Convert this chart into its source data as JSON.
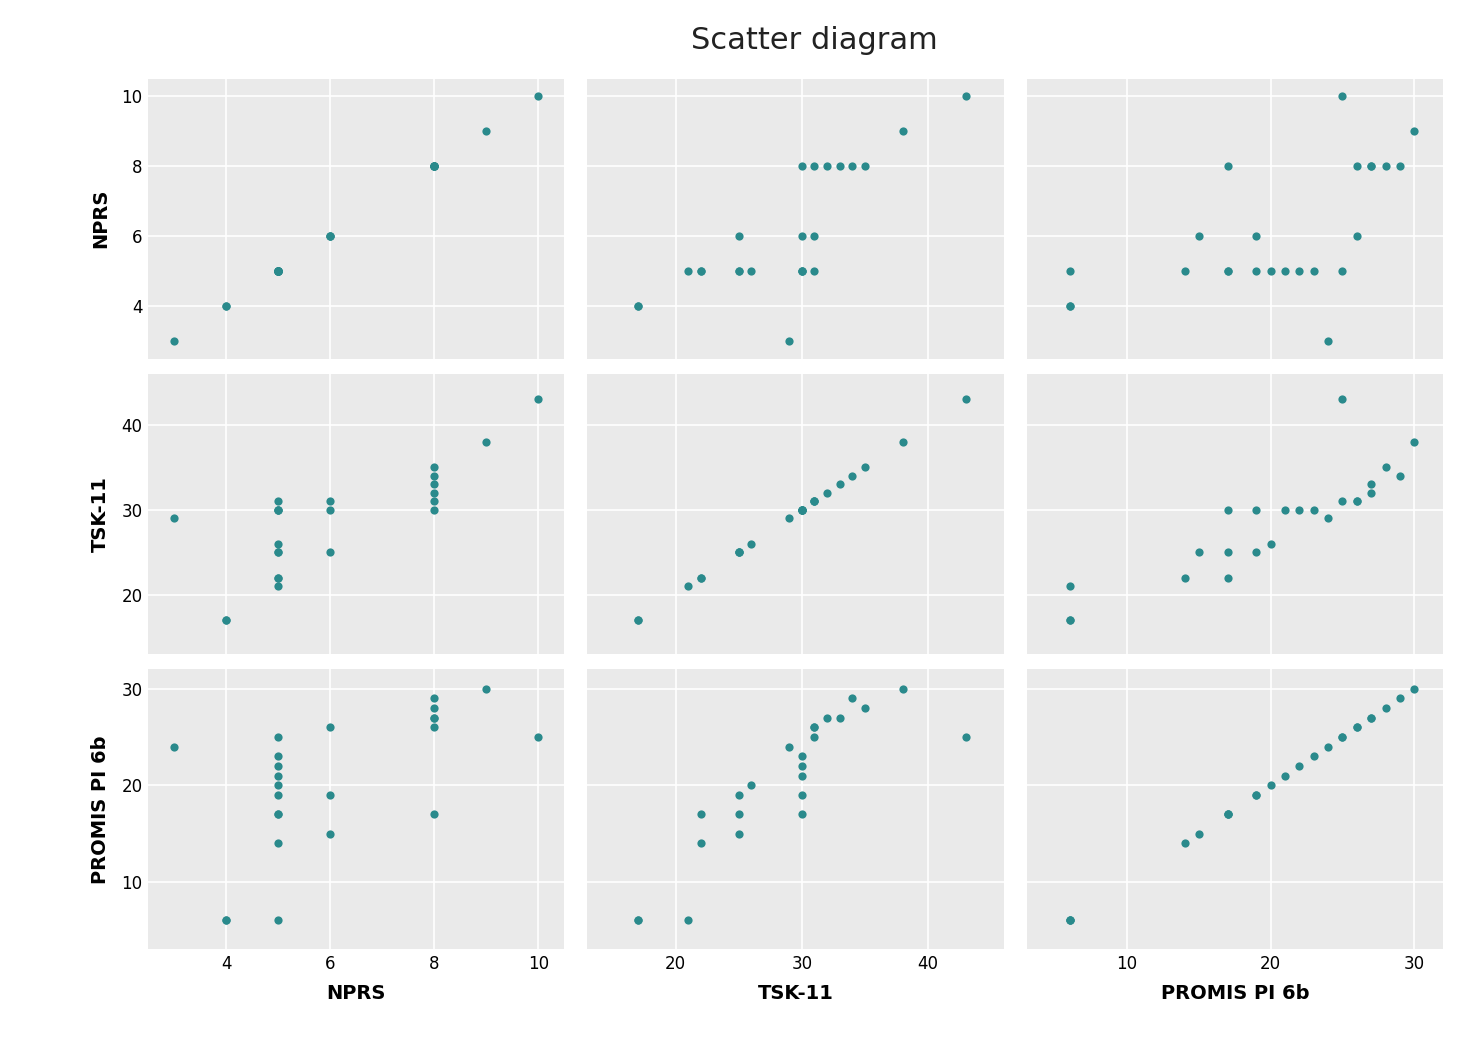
{
  "title": "Scatter diagram",
  "variables": [
    "NPRS",
    "TSK-11",
    "PROMIS PI 6b"
  ],
  "dot_color": "#2a8a8c",
  "dot_size": 35,
  "bg_color": "#eaeaea",
  "fig_bg_color": "#ffffff",
  "grid_color": "#ffffff",
  "xlabels": [
    "NPRS",
    "TSK-11",
    "PROMIS PI 6b"
  ],
  "ylabels": [
    "NPRS",
    "TSK-11",
    "PROMIS PI 6b"
  ],
  "NPRS": [
    3,
    4,
    4,
    5,
    5,
    5,
    5,
    5,
    5,
    5,
    5,
    5,
    5,
    6,
    6,
    6,
    8,
    8,
    8,
    8,
    8,
    8,
    9,
    10
  ],
  "TSK11": [
    29,
    17,
    17,
    21,
    22,
    22,
    25,
    25,
    26,
    30,
    30,
    30,
    31,
    25,
    30,
    31,
    30,
    31,
    32,
    33,
    35,
    34,
    38,
    43
  ],
  "PROMIS": [
    24,
    6,
    6,
    6,
    14,
    17,
    17,
    19,
    20,
    21,
    22,
    23,
    25,
    15,
    19,
    26,
    17,
    26,
    27,
    27,
    28,
    29,
    30,
    25
  ],
  "axis_limits": {
    "NPRS": [
      2.5,
      10.5
    ],
    "TSK-11": [
      13,
      46
    ],
    "PROMIS PI 6b": [
      3,
      32
    ]
  },
  "axis_ticks": {
    "NPRS": [
      4,
      6,
      8,
      10
    ],
    "TSK-11": [
      20,
      30,
      40
    ],
    "PROMIS PI 6b": [
      10,
      20,
      30
    ]
  }
}
